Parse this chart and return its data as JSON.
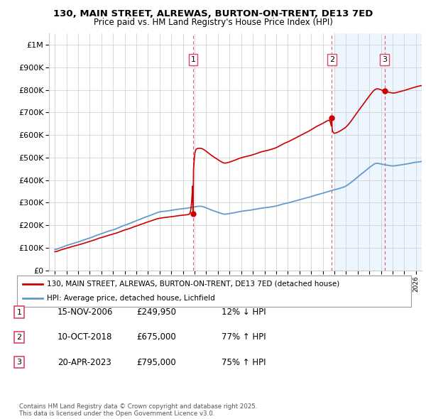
{
  "title": "130, MAIN STREET, ALREWAS, BURTON-ON-TRENT, DE13 7ED",
  "subtitle": "Price paid vs. HM Land Registry's House Price Index (HPI)",
  "legend_line1": "130, MAIN STREET, ALREWAS, BURTON-ON-TRENT, DE13 7ED (detached house)",
  "legend_line2": "HPI: Average price, detached house, Lichfield",
  "transactions": [
    {
      "num": 1,
      "date": "15-NOV-2006",
      "price": 249950,
      "pct": "12%",
      "dir": "↓",
      "year": 2006.88
    },
    {
      "num": 2,
      "date": "10-OCT-2018",
      "price": 675000,
      "pct": "77%",
      "dir": "↑",
      "year": 2018.78
    },
    {
      "num": 3,
      "date": "20-APR-2023",
      "price": 795000,
      "pct": "75%",
      "dir": "↑",
      "year": 2023.3
    }
  ],
  "footer": "Contains HM Land Registry data © Crown copyright and database right 2025.\nThis data is licensed under the Open Government Licence v3.0.",
  "red_color": "#cc0000",
  "blue_color": "#6699cc",
  "blue_fill": "#ddeeff",
  "dashed_color": "#dd4466",
  "background_color": "#ffffff",
  "grid_color": "#cccccc",
  "ylim": [
    0,
    1050000
  ],
  "xlim_start": 1994.5,
  "xlim_end": 2026.5,
  "shade_start": 2019.0
}
